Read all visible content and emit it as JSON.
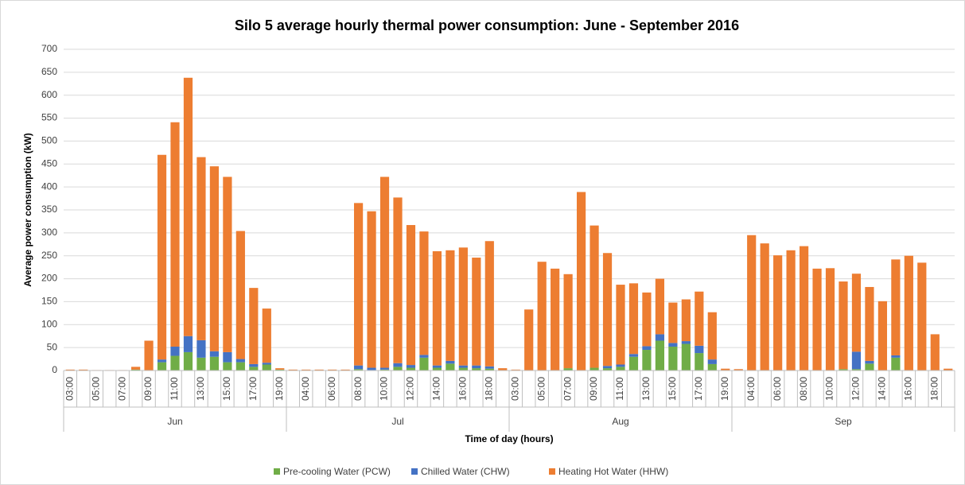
{
  "chart_data": {
    "type": "stacked_bar",
    "title": "Silo 5 average hourly thermal power consumption: June - September 2016",
    "y_label": "Average power consumption (kW)",
    "x_label": "Time of day (hours)",
    "groups": [
      "Jun",
      "Jul",
      "Aug",
      "Sep"
    ],
    "categories": [
      "03:00",
      null,
      "05:00",
      null,
      "07:00",
      null,
      "09:00",
      null,
      "11:00",
      null,
      "13:00",
      null,
      "15:00",
      null,
      "17:00",
      null,
      "19:00",
      null,
      "04:00",
      null,
      "06:00",
      null,
      "08:00",
      null,
      "10:00",
      null,
      "12:00",
      null,
      "14:00",
      null,
      "16:00",
      null,
      "18:00",
      null,
      "03:00",
      null,
      "05:00",
      null,
      "07:00",
      null,
      "09:00",
      null,
      "11:00",
      null,
      "13:00",
      null,
      "15:00",
      null,
      "17:00",
      null,
      "19:00",
      null,
      "04:00",
      null,
      "06:00",
      null,
      "08:00",
      null,
      "10:00",
      null,
      "12:00",
      null,
      "14:00",
      null,
      "16:00",
      null,
      "18:00",
      null
    ],
    "series": [
      {
        "name": "Pre-cooling Water (PCW)",
        "color": "#70ad47",
        "values": [
          0,
          0,
          0,
          0,
          0,
          2,
          0,
          18,
          32,
          40,
          28,
          30,
          18,
          18,
          8,
          13,
          2,
          0,
          0,
          0,
          0,
          0,
          3,
          1,
          2,
          8,
          6,
          28,
          6,
          15,
          6,
          5,
          4,
          0,
          0,
          0,
          0,
          0,
          5,
          0,
          6,
          5,
          8,
          30,
          45,
          65,
          52,
          58,
          38,
          14,
          0,
          0,
          0,
          0,
          0,
          0,
          0,
          0,
          0,
          3,
          3,
          15,
          0,
          28,
          0,
          0,
          0,
          0
        ]
      },
      {
        "name": "Chilled Water (CHW)",
        "color": "#4472c4",
        "values": [
          0,
          0,
          0,
          0,
          0,
          0,
          0,
          6,
          20,
          35,
          38,
          12,
          22,
          7,
          6,
          4,
          0,
          0,
          0,
          0,
          0,
          0,
          8,
          5,
          4,
          8,
          6,
          6,
          5,
          6,
          5,
          6,
          5,
          0,
          1,
          0,
          0,
          0,
          0,
          0,
          0,
          5,
          5,
          6,
          8,
          14,
          8,
          6,
          16,
          10,
          0,
          0,
          0,
          0,
          0,
          0,
          0,
          0,
          0,
          0,
          38,
          6,
          0,
          5,
          0,
          0,
          0,
          0
        ]
      },
      {
        "name": "Heating Hot Water (HHW)",
        "color": "#ed7d31",
        "values": [
          2,
          2,
          1,
          1,
          1,
          6,
          65,
          446,
          489,
          563,
          399,
          403,
          382,
          279,
          166,
          118,
          3,
          2,
          2,
          2,
          2,
          2,
          354,
          341,
          416,
          361,
          305,
          269,
          249,
          241,
          257,
          235,
          273,
          5,
          1,
          133,
          237,
          222,
          205,
          389,
          310,
          246,
          174,
          154,
          117,
          121,
          88,
          91,
          118,
          103,
          4,
          3,
          295,
          277,
          251,
          262,
          271,
          222,
          223,
          191,
          170,
          161,
          151,
          209,
          250,
          235,
          79,
          4
        ]
      }
    ],
    "ylim": [
      0,
      700
    ],
    "yticks": [
      0,
      50,
      100,
      150,
      200,
      250,
      300,
      350,
      400,
      450,
      500,
      550,
      600,
      650,
      700
    ],
    "grid": true,
    "legend": "bottom"
  }
}
